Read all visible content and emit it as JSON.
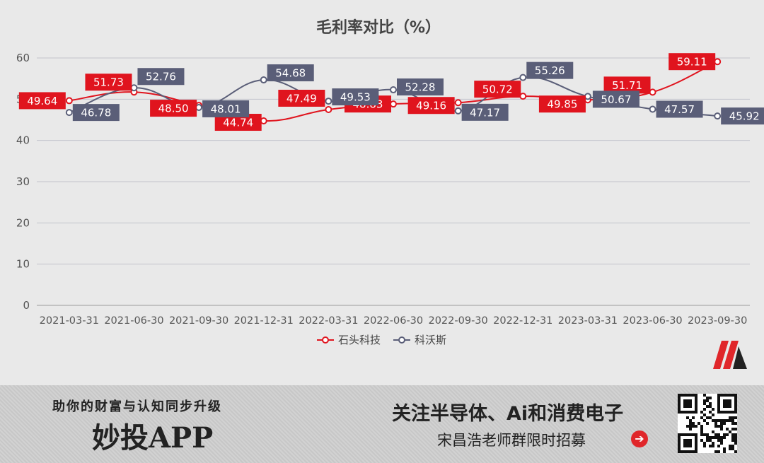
{
  "chart_data": {
    "type": "line",
    "title": "毛利率对比（%）",
    "categories": [
      "2021-03-31",
      "2021-06-30",
      "2021-09-30",
      "2021-12-31",
      "2022-03-31",
      "2022-06-30",
      "2022-09-30",
      "2022-12-31",
      "2023-03-31",
      "2023-06-30",
      "2023-09-30"
    ],
    "ylim": [
      0,
      60
    ],
    "yticks": [
      "0",
      "10",
      "20",
      "30",
      "40",
      "50",
      "60"
    ],
    "grid": true,
    "legend_position": "bottom",
    "series": [
      {
        "name": "石头科技",
        "color": "#e0141e",
        "values": [
          49.64,
          51.73,
          48.5,
          44.74,
          47.49,
          48.83,
          49.16,
          50.72,
          49.85,
          51.71,
          59.11
        ],
        "labels": [
          "49.64",
          "51.73",
          "48.50",
          "44.74",
          "47.49",
          "48.83",
          "49.16",
          "50.72",
          "49.85",
          "51.71",
          "59.11"
        ]
      },
      {
        "name": "科沃斯",
        "color": "#5a5e78",
        "values": [
          46.78,
          52.76,
          48.01,
          54.68,
          49.53,
          52.28,
          47.17,
          55.26,
          50.67,
          47.57,
          45.92
        ],
        "labels": [
          "46.78",
          "52.76",
          "48.01",
          "54.68",
          "49.53",
          "52.28",
          "47.17",
          "55.26",
          "50.67",
          "47.57",
          "45.92"
        ]
      }
    ]
  },
  "banner": {
    "slogan": "助你的财富与认知同步升级",
    "brand": "妙投APP",
    "headline": "关注半导体、Ai和消费电子",
    "subline": "宋昌浩老师群限时招募",
    "arrow_icon": "➔"
  }
}
